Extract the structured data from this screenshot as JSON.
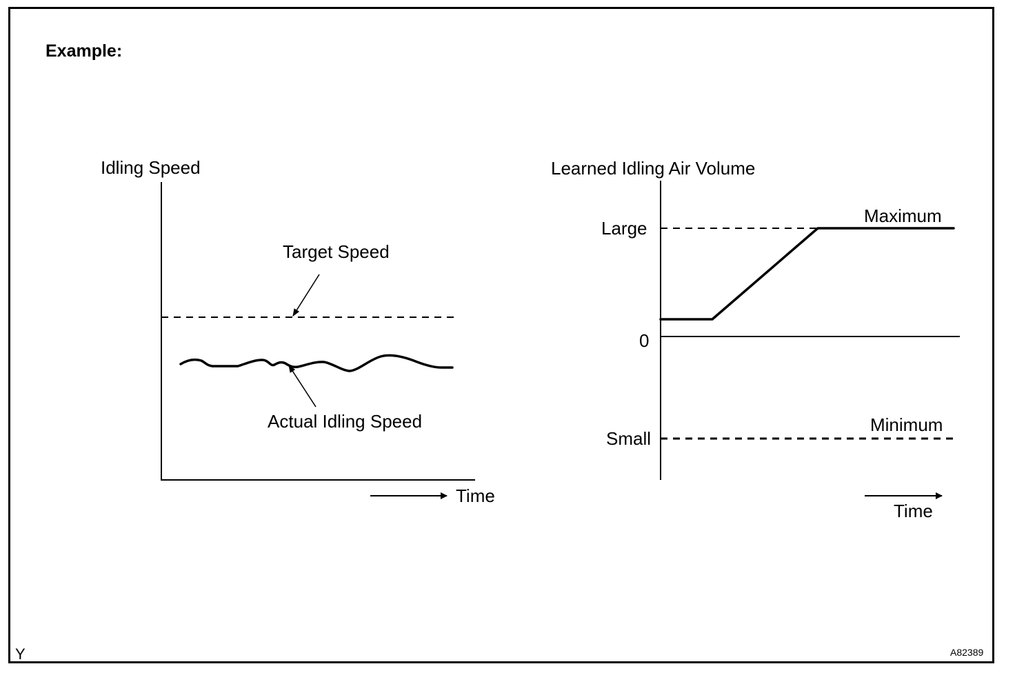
{
  "heading": "Example:",
  "left_diagram": {
    "y_label": "Idling Speed",
    "target_label": "Target Speed",
    "actual_label": "Actual Idling Speed",
    "time_label": "Time"
  },
  "right_diagram": {
    "y_label": "Learned Idling Air Volume",
    "large_label": "Large",
    "zero_label": "0",
    "small_label": "Small",
    "maximum_label": "Maximum",
    "minimum_label": "Minimum",
    "time_label": "Time"
  },
  "corner_left": "Y",
  "figure_code": "A82389"
}
